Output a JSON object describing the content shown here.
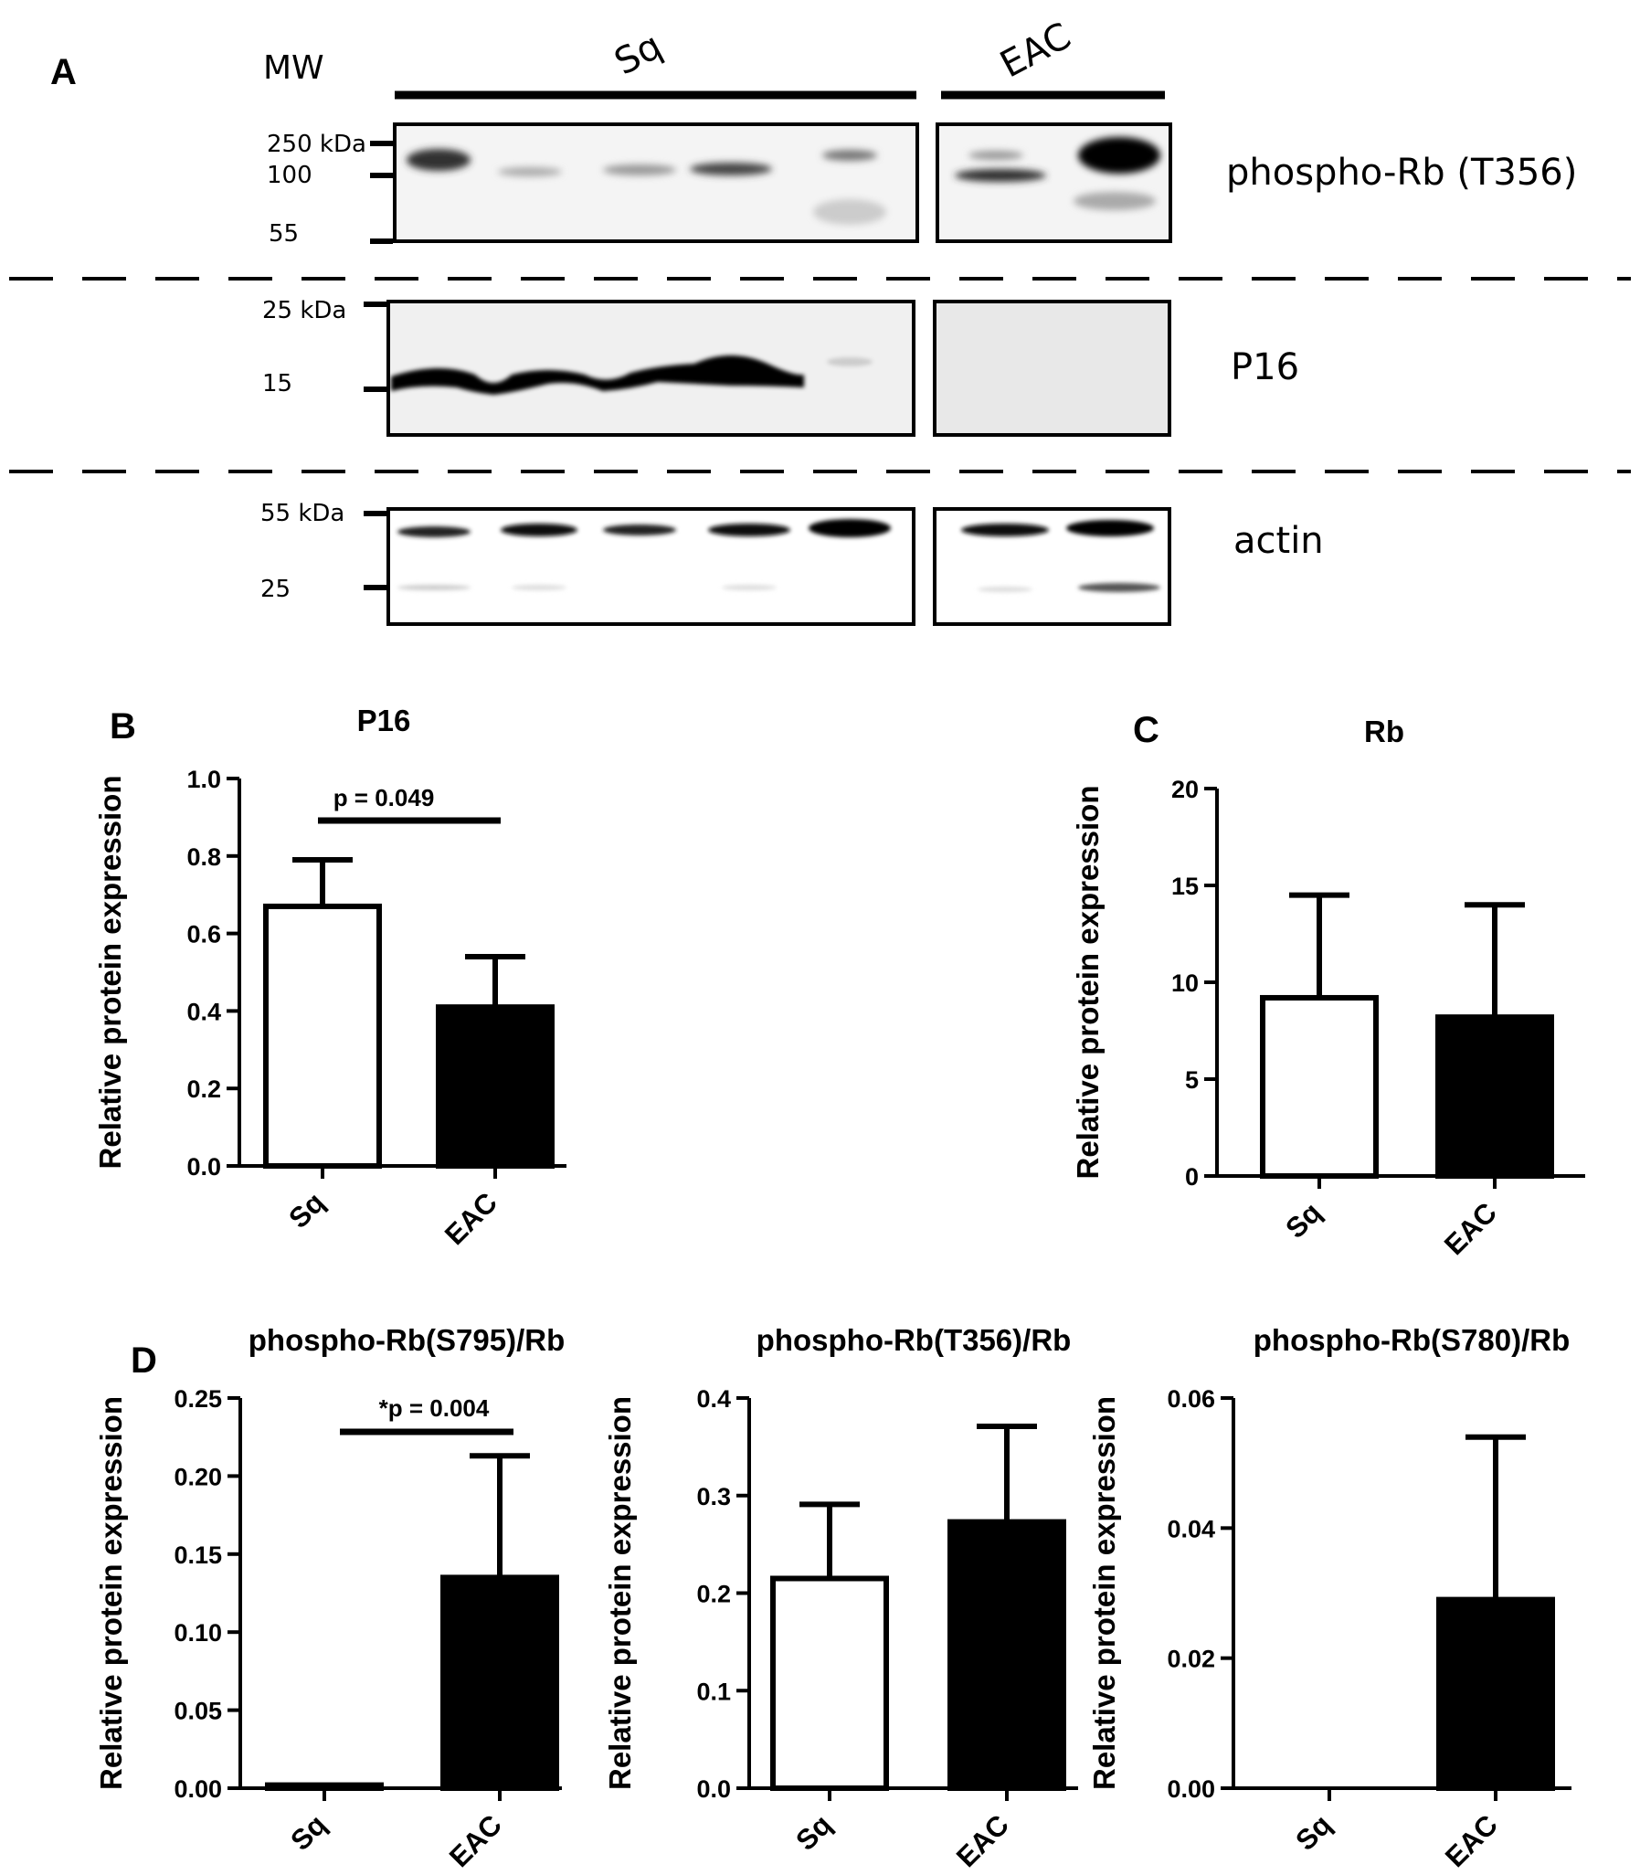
{
  "panel_a": {
    "label": "A",
    "mw_label": "MW",
    "groups": [
      {
        "label": "Sq"
      },
      {
        "label": "EAC"
      }
    ],
    "blots": [
      {
        "name": "phospho-Rb (T356)",
        "markers": [
          "250 kDa",
          "100",
          "55"
        ]
      },
      {
        "name": "P16",
        "markers": [
          "25 kDa",
          "15"
        ]
      },
      {
        "name": "actin",
        "markers": [
          "55 kDa",
          "25"
        ]
      }
    ]
  },
  "chart_data": [
    {
      "panel": "B",
      "type": "bar",
      "title": "P16",
      "ylabel": "Relative protein expression",
      "categories": [
        "Sq",
        "EAC"
      ],
      "values": [
        0.67,
        0.41
      ],
      "errors": [
        0.12,
        0.13
      ],
      "ylim": [
        0,
        1.0
      ],
      "yticks": [
        "0.0",
        "0.2",
        "0.4",
        "0.6",
        "0.8",
        "1.0"
      ],
      "bar_colors": [
        "#ffffff",
        "#000000"
      ],
      "annotation": "p = 0.049"
    },
    {
      "panel": "C",
      "type": "bar",
      "title": "Rb",
      "ylabel": "Relative protein expression",
      "categories": [
        "Sq",
        "EAC"
      ],
      "values": [
        9.2,
        8.2
      ],
      "errors": [
        5.3,
        5.8
      ],
      "ylim": [
        0,
        20
      ],
      "yticks": [
        "0",
        "5",
        "10",
        "15",
        "20"
      ],
      "bar_colors": [
        "#ffffff",
        "#000000"
      ],
      "annotation": ""
    },
    {
      "panel": "D",
      "type": "bar",
      "title": "phospho-Rb(S795)/Rb",
      "ylabel": "Relative protein expression",
      "categories": [
        "Sq",
        "EAC"
      ],
      "values": [
        0.002,
        0.135
      ],
      "errors": [
        0,
        0.078
      ],
      "ylim": [
        0,
        0.25
      ],
      "yticks": [
        "0.00",
        "0.05",
        "0.10",
        "0.15",
        "0.20",
        "0.25"
      ],
      "bar_colors": [
        "#ffffff",
        "#000000"
      ],
      "annotation": "*p = 0.004"
    },
    {
      "panel": "",
      "type": "bar",
      "title": "phospho-Rb(T356)/Rb",
      "ylabel": "Relative protein expression",
      "categories": [
        "Sq",
        "EAC"
      ],
      "values": [
        0.215,
        0.273
      ],
      "errors": [
        0.076,
        0.098
      ],
      "ylim": [
        0,
        0.4
      ],
      "yticks": [
        "0.0",
        "0.1",
        "0.2",
        "0.3",
        "0.4"
      ],
      "bar_colors": [
        "#ffffff",
        "#000000"
      ],
      "annotation": ""
    },
    {
      "panel": "",
      "type": "bar",
      "title": "phospho-Rb(S780)/Rb",
      "ylabel": "Relative protein expression",
      "categories": [
        "Sq",
        "EAC"
      ],
      "values": [
        0,
        0.029
      ],
      "errors": [
        0,
        0.025
      ],
      "ylim": [
        0,
        0.06
      ],
      "yticks": [
        "0.00",
        "0.02",
        "0.04",
        "0.06"
      ],
      "bar_colors": [
        "#ffffff",
        "#000000"
      ],
      "annotation": ""
    }
  ]
}
